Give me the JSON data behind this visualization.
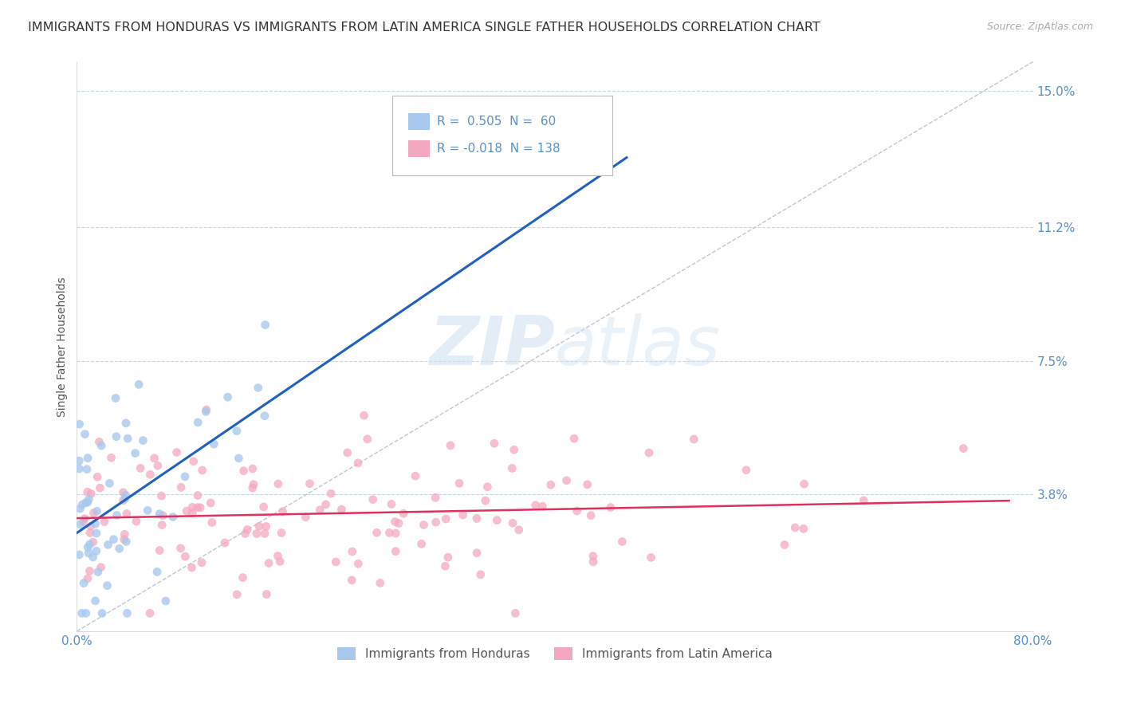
{
  "title": "IMMIGRANTS FROM HONDURAS VS IMMIGRANTS FROM LATIN AMERICA SINGLE FATHER HOUSEHOLDS CORRELATION CHART",
  "source": "Source: ZipAtlas.com",
  "ylabel": "Single Father Households",
  "xlim": [
    0.0,
    0.8
  ],
  "ylim": [
    0.0,
    0.158
  ],
  "yticks": [
    0.038,
    0.075,
    0.112,
    0.15
  ],
  "ytick_labels": [
    "3.8%",
    "7.5%",
    "11.2%",
    "15.0%"
  ],
  "xticks": [
    0.0,
    0.1,
    0.2,
    0.3,
    0.4,
    0.5,
    0.6,
    0.7,
    0.8
  ],
  "xtick_labels": [
    "0.0%",
    "",
    "",
    "",
    "",
    "",
    "",
    "",
    "80.0%"
  ],
  "series1_color": "#a8c8ee",
  "series2_color": "#f4a8c0",
  "trend1_color": "#2060c0",
  "trend2_color": "#e03060",
  "R1": 0.505,
  "N1": 60,
  "R2": -0.018,
  "N2": 138,
  "legend_label1": "Immigrants from Honduras",
  "legend_label2": "Immigrants from Latin America",
  "watermark_zip": "ZIP",
  "watermark_atlas": "atlas",
  "background_color": "#ffffff",
  "grid_color": "#c8d8ec",
  "axis_color": "#5a8fc8",
  "seed": 42,
  "title_fontsize": 11.5,
  "axis_label_fontsize": 10,
  "tick_fontsize": 11,
  "legend_fontsize": 11
}
